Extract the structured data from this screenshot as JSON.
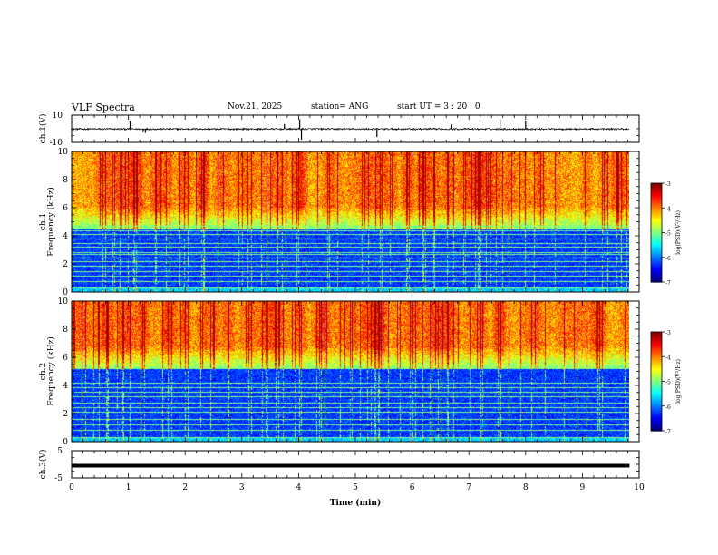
{
  "header": {
    "title": "VLF Spectra",
    "date": "Nov.21, 2025",
    "station": "station= ANG",
    "start": "start  UT =   3  : 20 : 0"
  },
  "chart_data": {
    "type": "heatmap",
    "title": "VLF Spectra",
    "xlabel": "Time  (min)",
    "xlim": [
      0,
      10
    ],
    "x_ticks": [
      "0",
      "1",
      "2",
      "3",
      "4",
      "5",
      "6",
      "7",
      "8",
      "9",
      "10"
    ],
    "data_end_min": 9.83,
    "panels": [
      {
        "name": "ch1-waveform",
        "type": "line",
        "ylabel": "ch.1(V)",
        "ylim": [
          -10,
          10
        ],
        "y_ticks": [
          "10",
          "-10"
        ],
        "baseline": -0.2,
        "noise": 0.6,
        "spikes": [
          {
            "t": 1.03,
            "v": 6
          },
          {
            "t": 1.26,
            "v": -2.5
          },
          {
            "t": 1.3,
            "v": -3
          },
          {
            "t": 3.75,
            "v": 3.5
          },
          {
            "t": 4.02,
            "v": 7
          },
          {
            "t": 4.05,
            "v": -8
          },
          {
            "t": 5.38,
            "v": -6
          },
          {
            "t": 6.7,
            "v": 3
          },
          {
            "t": 7.55,
            "v": 7
          },
          {
            "t": 8.0,
            "v": 6
          }
        ]
      },
      {
        "name": "ch1-spectrogram",
        "type": "heatmap",
        "ylabel": "ch.1",
        "ylabel2": "Frequency  (kHz)",
        "ylim": [
          0,
          10
        ],
        "y_ticks": [
          "0",
          "2",
          "4",
          "6",
          "8",
          "10"
        ],
        "colorbar": {
          "label": "log(PSD)(V²/Hz)",
          "ticks": [
            "-3",
            "-4",
            "-5",
            "-6",
            "-7"
          ],
          "range": [
            -7,
            -3
          ]
        },
        "hum_lines_khz": [
          0.3,
          0.8,
          1.15,
          1.5,
          1.85,
          2.2,
          2.45,
          2.7,
          2.85,
          3.2,
          3.5,
          3.8,
          4.15,
          4.4,
          4.7
        ],
        "intensity_cutoff_khz": 4.5
      },
      {
        "name": "ch2-spectrogram",
        "type": "heatmap",
        "ylabel": "ch.2",
        "ylabel2": "Frequency  (kHz)",
        "ylim": [
          0,
          10
        ],
        "y_ticks": [
          "0",
          "2",
          "4",
          "6",
          "8",
          "10"
        ],
        "colorbar": {
          "label": "log(PSD)(V²/Hz)",
          "ticks": [
            "-3",
            "-4",
            "-5",
            "-6",
            "-7"
          ],
          "range": [
            -7,
            -3
          ]
        },
        "hum_lines_khz": [
          0.35,
          0.85,
          1.25,
          1.6,
          2.1,
          2.45,
          2.8,
          3.2,
          3.55,
          3.85,
          4.2
        ],
        "intensity_cutoff_khz": 5.2
      },
      {
        "name": "ch3-waveform",
        "type": "line",
        "ylabel": "ch.3(V)",
        "ylim": [
          -5,
          5
        ],
        "y_ticks": [
          "5",
          "-5"
        ],
        "baseline": -0.5
      }
    ]
  }
}
